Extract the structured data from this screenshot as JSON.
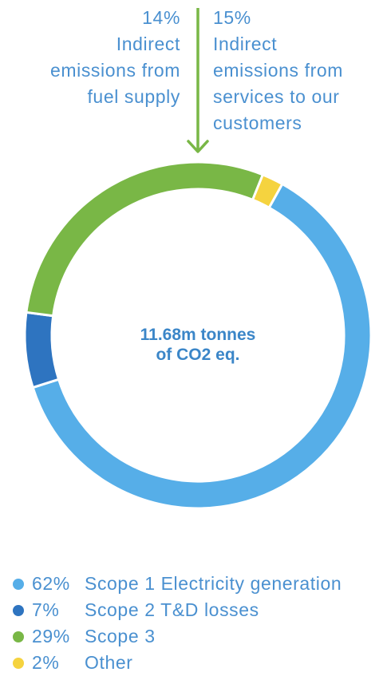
{
  "colors": {
    "scope1": "#56aee8",
    "scope2": "#2e74c0",
    "scope3": "#79b746",
    "other": "#f5d33f",
    "text": "#4a90d0",
    "arrow": "#79b746"
  },
  "annotations": {
    "left": {
      "pct": "14%",
      "line1": "Indirect",
      "line2": "emissions from",
      "line3": "fuel supply"
    },
    "right": {
      "pct": "15%",
      "line1": "Indirect",
      "line2": "emissions from",
      "line3": "services to our",
      "line4": "customers"
    }
  },
  "center": {
    "line1": "11.68m tonnes",
    "line2": "of CO2 eq."
  },
  "chart_data": {
    "type": "pie",
    "total_label": "11.68m tonnes of CO2 eq.",
    "slices": [
      {
        "key": "scope1",
        "name": "Scope 1 Electricity generation",
        "pct_label": "62%",
        "value": 62,
        "color": "#56aee8"
      },
      {
        "key": "scope2",
        "name": "Scope 2 T&D losses",
        "pct_label": "7%",
        "value": 7,
        "color": "#2e74c0"
      },
      {
        "key": "scope3",
        "name": "Scope 3",
        "pct_label": "29%",
        "value": 29,
        "color": "#79b746"
      },
      {
        "key": "other",
        "name": "Other",
        "pct_label": "2%",
        "value": 2,
        "color": "#f5d33f"
      }
    ],
    "scope3_breakdown": [
      {
        "name": "Indirect emissions from fuel supply",
        "value": 14
      },
      {
        "name": "Indirect emissions from services to our customers",
        "value": 15
      }
    ],
    "legend_position": "bottom-left"
  },
  "legend": [
    {
      "pct": "62%",
      "label": "Scope 1 Electricity generation",
      "color": "#56aee8"
    },
    {
      "pct": "7%",
      "label": "Scope 2 T&D losses",
      "color": "#2e74c0"
    },
    {
      "pct": "29%",
      "label": "Scope 3",
      "color": "#79b746"
    },
    {
      "pct": "2%",
      "label": "Other",
      "color": "#f5d33f"
    }
  ]
}
